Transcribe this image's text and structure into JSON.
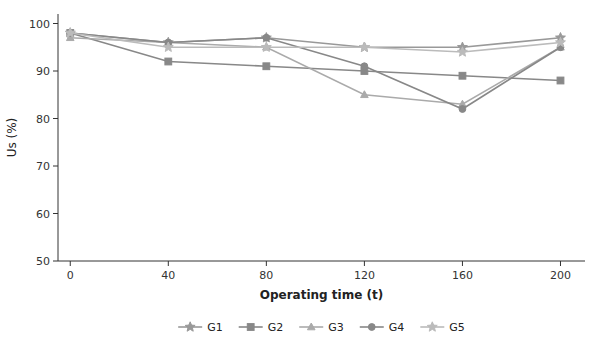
{
  "chart_data": {
    "type": "line",
    "x": [
      0,
      40,
      80,
      120,
      160,
      200
    ],
    "xlabel": "Operating time (t)",
    "ylabel": "Us (%)",
    "xlim": [
      -5,
      210
    ],
    "ylim": [
      50,
      102
    ],
    "xticks": [
      0,
      40,
      80,
      120,
      160,
      200
    ],
    "yticks": [
      50,
      60,
      70,
      80,
      90,
      100
    ],
    "grid": false,
    "legend": "bottom",
    "series": [
      {
        "name": "G1",
        "color": "#999999",
        "marker": "star",
        "values": [
          98,
          96,
          97,
          95,
          95,
          97
        ]
      },
      {
        "name": "G2",
        "color": "#888888",
        "marker": "square",
        "values": [
          98,
          92,
          91,
          90,
          89,
          88
        ]
      },
      {
        "name": "G3",
        "color": "#aaaaaa",
        "marker": "triangle",
        "values": [
          97,
          96,
          95,
          85,
          83,
          95
        ]
      },
      {
        "name": "G4",
        "color": "#888888",
        "marker": "circle",
        "values": [
          98,
          96,
          97,
          91,
          82,
          95
        ]
      },
      {
        "name": "G5",
        "color": "#bbbbbb",
        "marker": "star",
        "values": [
          98,
          95,
          95,
          95,
          94,
          96
        ]
      }
    ]
  }
}
